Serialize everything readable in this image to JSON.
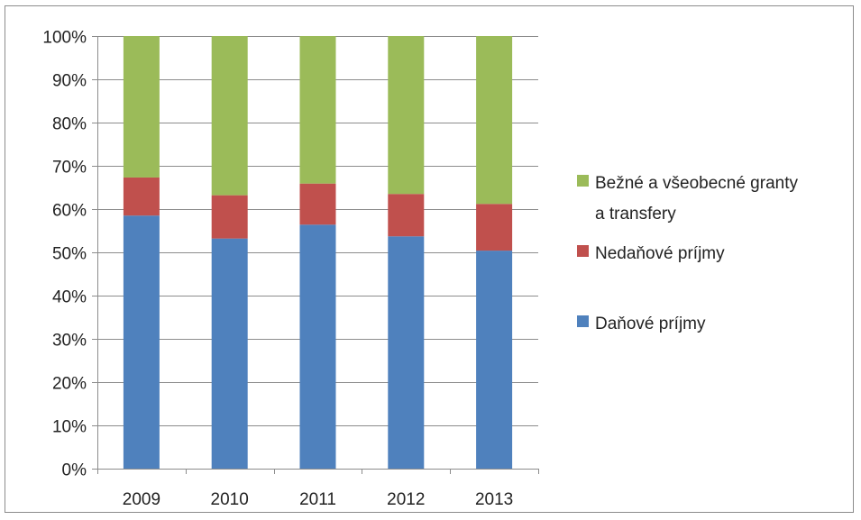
{
  "chart_data": {
    "type": "bar",
    "stacked": true,
    "percent_stacked": true,
    "categories": [
      "2009",
      "2010",
      "2011",
      "2012",
      "2013"
    ],
    "series": [
      {
        "name": "Daňové príjmy",
        "color": "#4F81BD",
        "values": [
          58.5,
          53.2,
          56.4,
          53.7,
          50.4
        ]
      },
      {
        "name": "Nedaňové príjmy",
        "color": "#C0504D",
        "values": [
          8.8,
          10.0,
          9.5,
          9.8,
          10.8
        ]
      },
      {
        "name": "Bežné a všeobecné granty a transfery",
        "color": "#9BBB59",
        "values": [
          32.7,
          36.8,
          34.1,
          36.5,
          38.8
        ]
      }
    ],
    "legend_entries": [
      {
        "series": 2,
        "lines": [
          "Bežné a všeobecné granty",
          "a transfery"
        ]
      },
      {
        "series": 1,
        "lines": [
          "Nedaňové príjmy"
        ]
      },
      {
        "series": 0,
        "lines": [
          "Daňové príjmy"
        ]
      }
    ],
    "y_ticks": [
      "0%",
      "10%",
      "20%",
      "30%",
      "40%",
      "50%",
      "60%",
      "70%",
      "80%",
      "90%",
      "100%"
    ],
    "ylim": [
      0,
      100
    ],
    "grid": true,
    "legend_position": "right",
    "title": "",
    "xlabel": "",
    "ylabel": ""
  }
}
